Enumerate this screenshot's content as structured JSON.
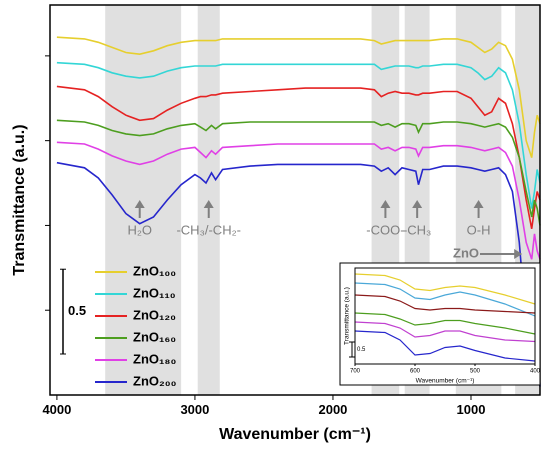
{
  "chart_data": [
    {
      "type": "line",
      "xlabel": "Wavenumber (cm⁻¹)",
      "ylabel": "Transmittance (a.u.)",
      "xlim": [
        4050,
        500
      ],
      "xticks": [
        4000,
        3000,
        2000,
        1000
      ],
      "ylim": [
        0,
        2.3
      ],
      "yticks": [
        0.5,
        1,
        1.5,
        2
      ],
      "legend": "lower left",
      "scale_bar": 0.5,
      "bands": [
        [
          3650,
          3100
        ],
        [
          2980,
          2820
        ],
        [
          1720,
          1520
        ],
        [
          1480,
          1300
        ],
        [
          1110,
          780
        ],
        [
          680,
          500
        ]
      ],
      "annotations": [
        {
          "text": "H₂O",
          "x": 3400
        },
        {
          "text": "-CH₃/-CH₂-",
          "x": 2900
        },
        {
          "text": "-COO-",
          "x": 1620
        },
        {
          "text": "-CH₃",
          "x": 1390
        },
        {
          "text": "O-H",
          "x": 945
        },
        {
          "text": "ZnO",
          "x": 600
        }
      ],
      "x": [
        4000,
        3800,
        3700,
        3600,
        3500,
        3400,
        3300,
        3200,
        3100,
        3000,
        2960,
        2920,
        2880,
        2850,
        2800,
        2600,
        2400,
        2200,
        2000,
        1800,
        1700,
        1650,
        1600,
        1550,
        1500,
        1450,
        1400,
        1380,
        1350,
        1300,
        1200,
        1100,
        1000,
        950,
        900,
        850,
        800,
        750,
        700,
        650,
        600,
        560,
        540,
        520,
        500
      ],
      "series": [
        {
          "name": "ZnO₁₀₀",
          "color": "#e6cf2e",
          "values": [
            2.11,
            2.1,
            2.08,
            2.05,
            2.02,
            2.01,
            2.03,
            2.06,
            2.08,
            2.09,
            2.09,
            2.09,
            2.09,
            2.09,
            2.1,
            2.1,
            2.1,
            2.1,
            2.1,
            2.1,
            2.09,
            2.07,
            2.08,
            2.09,
            2.09,
            2.09,
            2.09,
            2.09,
            2.09,
            2.09,
            2.1,
            2.1,
            2.08,
            2.05,
            2.02,
            2.04,
            2.08,
            2.06,
            1.98,
            1.8,
            1.5,
            1.4,
            1.55,
            1.65,
            1.6
          ]
        },
        {
          "name": "ZnO₁₁₀",
          "color": "#33d6d6",
          "values": [
            1.96,
            1.95,
            1.93,
            1.9,
            1.88,
            1.87,
            1.88,
            1.91,
            1.93,
            1.94,
            1.94,
            1.94,
            1.94,
            1.94,
            1.95,
            1.95,
            1.95,
            1.95,
            1.95,
            1.95,
            1.95,
            1.92,
            1.93,
            1.94,
            1.94,
            1.94,
            1.93,
            1.93,
            1.94,
            1.94,
            1.95,
            1.95,
            1.93,
            1.9,
            1.86,
            1.88,
            1.93,
            1.9,
            1.8,
            1.6,
            1.3,
            1.1,
            1.2,
            1.33,
            1.25
          ]
        },
        {
          "name": "ZnO₁₂₀",
          "color": "#e52222",
          "values": [
            1.82,
            1.8,
            1.76,
            1.7,
            1.65,
            1.62,
            1.63,
            1.68,
            1.72,
            1.75,
            1.76,
            1.76,
            1.77,
            1.77,
            1.78,
            1.79,
            1.8,
            1.81,
            1.81,
            1.81,
            1.8,
            1.76,
            1.78,
            1.79,
            1.78,
            1.78,
            1.77,
            1.77,
            1.78,
            1.78,
            1.79,
            1.79,
            1.75,
            1.7,
            1.65,
            1.67,
            1.75,
            1.72,
            1.6,
            1.4,
            1.15,
            0.98,
            1.1,
            1.2,
            1.15
          ]
        },
        {
          "name": "ZnO₁₆₀",
          "color": "#4d9e1f",
          "values": [
            1.62,
            1.61,
            1.59,
            1.56,
            1.54,
            1.53,
            1.54,
            1.57,
            1.59,
            1.6,
            1.58,
            1.56,
            1.59,
            1.57,
            1.6,
            1.61,
            1.61,
            1.61,
            1.61,
            1.61,
            1.61,
            1.59,
            1.6,
            1.58,
            1.6,
            1.6,
            1.59,
            1.55,
            1.6,
            1.6,
            1.61,
            1.61,
            1.6,
            1.59,
            1.58,
            1.59,
            1.6,
            1.58,
            1.52,
            1.4,
            1.2,
            1.05,
            1.15,
            1.1,
            1.0
          ]
        },
        {
          "name": "ZnO₁₈₀",
          "color": "#e040e6",
          "values": [
            1.49,
            1.48,
            1.45,
            1.41,
            1.38,
            1.36,
            1.38,
            1.42,
            1.45,
            1.46,
            1.43,
            1.4,
            1.44,
            1.42,
            1.46,
            1.47,
            1.48,
            1.48,
            1.48,
            1.48,
            1.48,
            1.45,
            1.46,
            1.44,
            1.46,
            1.46,
            1.45,
            1.41,
            1.46,
            1.46,
            1.47,
            1.47,
            1.46,
            1.45,
            1.44,
            1.45,
            1.46,
            1.43,
            1.35,
            1.15,
            0.9,
            0.8,
            0.95,
            0.85,
            0.8
          ]
        },
        {
          "name": "ZnO₂₀₀",
          "color": "#2626cc",
          "values": [
            1.37,
            1.34,
            1.28,
            1.18,
            1.07,
            1.01,
            1.05,
            1.15,
            1.24,
            1.3,
            1.28,
            1.25,
            1.31,
            1.27,
            1.33,
            1.35,
            1.36,
            1.36,
            1.36,
            1.36,
            1.35,
            1.32,
            1.34,
            1.3,
            1.34,
            1.33,
            1.32,
            1.24,
            1.33,
            1.33,
            1.35,
            1.35,
            1.34,
            1.33,
            1.32,
            1.33,
            1.34,
            1.3,
            1.2,
            0.9,
            0.4,
            0.08,
            0.55,
            0.3,
            0.05
          ]
        }
      ]
    },
    {
      "type": "line",
      "xlabel": "Wavenumber (cm⁻¹)",
      "ylabel": "Transmittance (a.u.)",
      "xlim": [
        700,
        400
      ],
      "xticks": [
        700,
        600,
        500,
        400
      ],
      "ylim": [
        0,
        3.2
      ],
      "scale_bar": 0.5,
      "x": [
        700,
        650,
        625,
        600,
        575,
        550,
        525,
        500,
        450,
        400
      ],
      "series": [
        {
          "color": "#e6cf2e",
          "values": [
            3.0,
            2.95,
            2.8,
            2.5,
            2.45,
            2.55,
            2.6,
            2.55,
            2.3,
            2.0
          ]
        },
        {
          "color": "#4aa8d8",
          "values": [
            2.7,
            2.65,
            2.5,
            2.2,
            2.15,
            2.3,
            2.4,
            2.3,
            2.0,
            1.6
          ]
        },
        {
          "color": "#8b1a1a",
          "values": [
            2.3,
            2.25,
            2.1,
            1.85,
            1.8,
            1.85,
            1.85,
            1.8,
            1.75,
            1.7
          ]
        },
        {
          "color": "#4d9e1f",
          "values": [
            1.7,
            1.65,
            1.5,
            1.3,
            1.35,
            1.45,
            1.45,
            1.35,
            1.2,
            1.0
          ]
        },
        {
          "color": "#c040d0",
          "values": [
            1.4,
            1.35,
            1.2,
            0.9,
            0.95,
            1.1,
            1.1,
            0.95,
            0.8,
            0.75
          ]
        },
        {
          "color": "#2626cc",
          "values": [
            1.1,
            1.05,
            0.8,
            0.3,
            0.35,
            0.55,
            0.6,
            0.45,
            0.2,
            0.1
          ]
        }
      ]
    }
  ]
}
